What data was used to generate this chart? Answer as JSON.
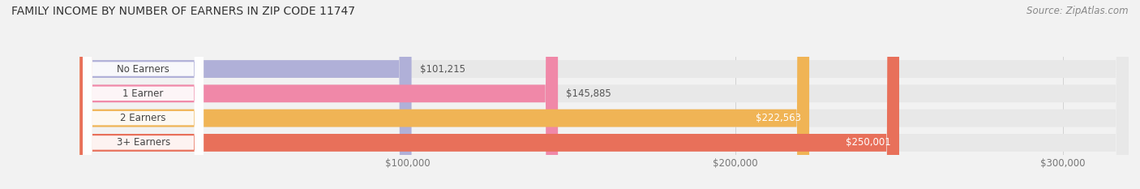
{
  "title": "FAMILY INCOME BY NUMBER OF EARNERS IN ZIP CODE 11747",
  "source": "Source: ZipAtlas.com",
  "categories": [
    "No Earners",
    "1 Earner",
    "2 Earners",
    "3+ Earners"
  ],
  "values": [
    101215,
    145885,
    222563,
    250001
  ],
  "bar_colors": [
    "#b0b0d8",
    "#f088a8",
    "#f0b455",
    "#e8705a"
  ],
  "label_colors": [
    "#555555",
    "#555555",
    "#ffffff",
    "#ffffff"
  ],
  "value_labels": [
    "$101,215",
    "$145,885",
    "$222,563",
    "$250,001"
  ],
  "xlim": [
    0,
    320000
  ],
  "xticks": [
    100000,
    200000,
    300000
  ],
  "xtick_labels": [
    "$100,000",
    "$200,000",
    "$300,000"
  ],
  "background_color": "#f2f2f2",
  "bar_background_color": "#e8e8e8",
  "title_fontsize": 10,
  "source_fontsize": 8.5,
  "value_label_fontsize": 8.5,
  "tick_fontsize": 8.5,
  "category_fontsize": 8.5
}
